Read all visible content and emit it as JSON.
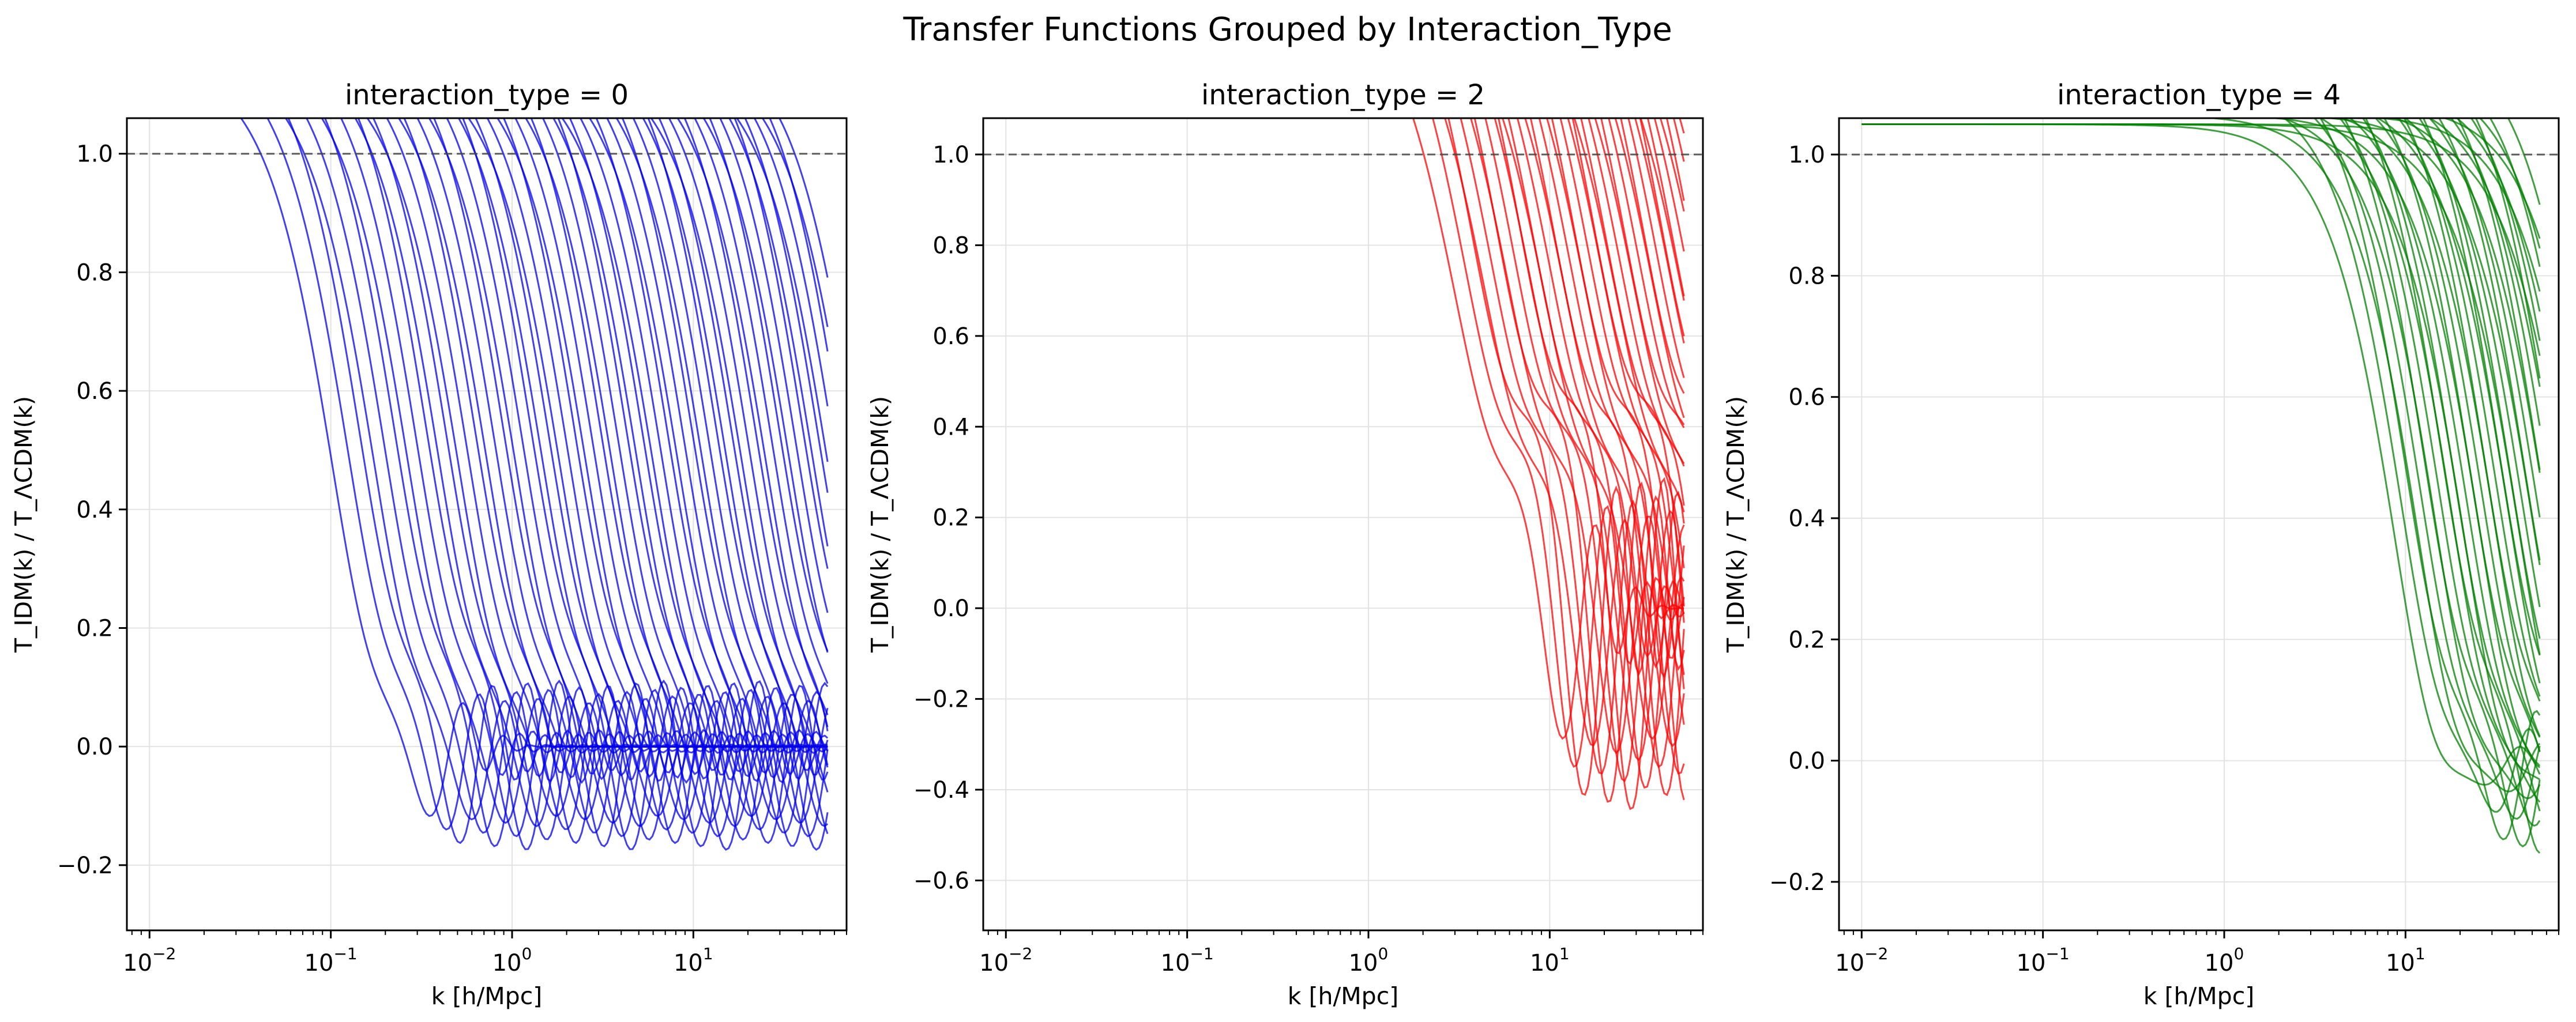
{
  "figure": {
    "title": "Transfer Functions Grouped by Interaction_Type"
  },
  "chart_data": [
    {
      "type": "line",
      "title": "interaction_type = 0",
      "xlabel": "k [h/Mpc]",
      "ylabel": "T_IDM(k) / T_ΛCDM(k)",
      "xscale": "log",
      "xlim": [
        0.0075,
        70
      ],
      "ylim": [
        -0.31,
        1.06
      ],
      "xticks": [
        0.01,
        0.1,
        1,
        10
      ],
      "xtick_labels": [
        {
          "base": "10",
          "exp": "−2"
        },
        {
          "base": "10",
          "exp": "−1"
        },
        {
          "base": "10",
          "exp": "0"
        },
        {
          "base": "10",
          "exp": "1"
        }
      ],
      "yticks": [
        -0.2,
        0.0,
        0.2,
        0.4,
        0.6,
        0.8,
        1.0
      ],
      "ytick_labels": [
        "−0.2",
        "0.0",
        "0.2",
        "0.4",
        "0.6",
        "0.8",
        "1.0"
      ],
      "color": "#0000ee",
      "reference_line": {
        "y": 1.0,
        "style": "dashed",
        "color": "#444444"
      },
      "grid": true,
      "k_range": [
        0.01,
        55
      ],
      "series_count": 60,
      "cutoff_k_range": [
        0.15,
        120
      ],
      "oscillation_depth_range": [
        0.16,
        0.24
      ]
    },
    {
      "type": "line",
      "title": "interaction_type = 2",
      "xlabel": "k [h/Mpc]",
      "ylabel": "T_IDM(k) / T_ΛCDM(k)",
      "xscale": "log",
      "xlim": [
        0.0075,
        70
      ],
      "ylim": [
        -0.71,
        1.08
      ],
      "xticks": [
        0.01,
        0.1,
        1,
        10
      ],
      "xtick_labels": [
        {
          "base": "10",
          "exp": "−2"
        },
        {
          "base": "10",
          "exp": "−1"
        },
        {
          "base": "10",
          "exp": "0"
        },
        {
          "base": "10",
          "exp": "1"
        }
      ],
      "yticks": [
        -0.6,
        -0.4,
        -0.2,
        0.0,
        0.2,
        0.4,
        0.6,
        0.8,
        1.0
      ],
      "ytick_labels": [
        "−0.6",
        "−0.4",
        "−0.2",
        "0.0",
        "0.2",
        "0.4",
        "0.6",
        "0.8",
        "1.0"
      ],
      "color": "#ff0000",
      "reference_line": {
        "y": 1.0,
        "style": "dashed",
        "color": "#444444"
      },
      "grid": true,
      "k_range": [
        0.01,
        55
      ],
      "series_count": 40,
      "cutoff_k_range": [
        5,
        140
      ],
      "oscillation_depth_range": [
        0.4,
        0.62
      ]
    },
    {
      "type": "line",
      "title": "interaction_type = 4",
      "xlabel": "k [h/Mpc]",
      "ylabel": "T_IDM(k) / T_ΛCDM(k)",
      "xscale": "log",
      "xlim": [
        0.0075,
        70
      ],
      "ylim": [
        -0.28,
        1.06
      ],
      "xticks": [
        0.01,
        0.1,
        1,
        10
      ],
      "xtick_labels": [
        {
          "base": "10",
          "exp": "−2"
        },
        {
          "base": "10",
          "exp": "−1"
        },
        {
          "base": "10",
          "exp": "0"
        },
        {
          "base": "10",
          "exp": "1"
        }
      ],
      "yticks": [
        -0.2,
        0.0,
        0.2,
        0.4,
        0.6,
        0.8,
        1.0
      ],
      "ytick_labels": [
        "−0.2",
        "0.0",
        "0.2",
        "0.4",
        "0.6",
        "0.8",
        "1.0"
      ],
      "color": "#008000",
      "reference_line": {
        "y": 1.0,
        "style": "dashed",
        "color": "#444444"
      },
      "grid": true,
      "k_range": [
        0.01,
        55
      ],
      "series_count": 40,
      "cutoff_k_range": [
        12,
        160
      ],
      "oscillation_depth_range": [
        0.05,
        0.21
      ]
    }
  ]
}
